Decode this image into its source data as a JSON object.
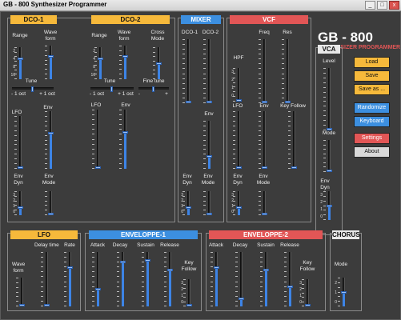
{
  "window": {
    "title": "GB - 800 Synthesizer Programmer",
    "min": "_",
    "max": "□",
    "close": "x"
  },
  "brand": {
    "name": "GB - 800",
    "sub": "SYNTHESIZER PROGRAMMER"
  },
  "colors": {
    "accent": "#3c8fe0",
    "orange": "#f6b93b",
    "red": "#e25656"
  },
  "dco1": {
    "header": "DCO-1",
    "range_label": "Range",
    "wave_label": "Wave\nform",
    "range_marks": [
      "2",
      "4",
      "8",
      "16"
    ],
    "tune_label": "Tune",
    "tune_minus": "- 1 oct",
    "tune_plus": "+ 1 oct",
    "lfo_label": "LFO",
    "env_label": "Env",
    "envdyn_label": "Env\nDyn",
    "envmode_label": "Env\nMode",
    "envdyn_marks": [
      "3",
      "2",
      "1",
      "0"
    ]
  },
  "dco2": {
    "header": "DCO-2",
    "range_label": "Range",
    "wave_label": "Wave\nform",
    "cross_label": "Cross\nMode",
    "range_marks": [
      "2",
      "4",
      "8",
      "16"
    ],
    "tune_label": "Tune",
    "tune_minus": "- 1 oct",
    "tune_plus": "+ 1 oct",
    "fine_label": "Fine tune",
    "fine_minus": "-",
    "fine_plus": "+",
    "lfo_label": "LFO",
    "env_label": "Env"
  },
  "mixer": {
    "header": "MIXER",
    "dco1_label": "DCO-1",
    "dco2_label": "DCO-2",
    "env_label": "Env",
    "envdyn_label": "Env\nDyn",
    "envmode_label": "Env\nMode",
    "envdyn_marks": [
      "3",
      "2",
      "1",
      "0"
    ]
  },
  "vcf": {
    "header": "VCF",
    "freq_label": "Freq",
    "res_label": "Res",
    "hpf_label": "HPF",
    "hpf_marks": [
      "3",
      "2",
      "1",
      "0"
    ],
    "lfo_label": "LFO",
    "env_label": "Env",
    "keyfollow_label": "Key Follow",
    "envdyn_label": "Env\nDyn",
    "envmode_label": "Env\nMode",
    "envdyn_marks": [
      "3",
      "2",
      "1",
      "0"
    ]
  },
  "vca": {
    "header": "VCA",
    "level_label": "Level",
    "mode_label": "Mode",
    "envdyn_label": "Env\nDyn",
    "envdyn_marks": [
      "3",
      "2",
      "1",
      "0"
    ]
  },
  "buttons": {
    "load": "Load",
    "save": "Save",
    "save_as": "Save as ...",
    "randomize": "Randomize",
    "keyboard": "Keyboard",
    "settings": "Settings",
    "about": "About"
  },
  "lfo": {
    "header": "LFO",
    "delay_label": "Delay time",
    "rate_label": "Rate",
    "wave_label": "Wave\nform"
  },
  "env1": {
    "header": "ENVELOPPE-1",
    "attack": "Attack",
    "decay": "Decay",
    "sustain": "Sustain",
    "release": "Release",
    "keyfollow": "Key\nFollow",
    "kf_marks": [
      "3",
      "2",
      "1",
      "0"
    ]
  },
  "env2": {
    "header": "ENVELOPPE-2",
    "attack": "Attack",
    "decay": "Decay",
    "sustain": "Sustain",
    "release": "Release",
    "keyfollow": "Key\nFollow",
    "kf_marks": [
      "3",
      "2",
      "1",
      "0"
    ]
  },
  "chorus": {
    "header": "CHORUS",
    "mode_label": "Mode",
    "mode_marks": [
      "2",
      "1",
      "0"
    ]
  },
  "sliders": {
    "dco1_range": 0.66,
    "dco1_wave": 0.7,
    "dco1_lfo": 0.0,
    "dco1_env": 0.62,
    "dco1_envdyn": 0.33,
    "dco1_envmode": 0.0,
    "dco2_range": 0.66,
    "dco2_wave": 0.7,
    "dco2_cross": 0.5,
    "dco2_lfo": 0.0,
    "dco2_env": 0.62,
    "mix_dco1": 0.0,
    "mix_dco2": 0.0,
    "mix_env": 0.26,
    "mix_envdyn": 0.33,
    "mix_envmode": 0.0,
    "vcf_hpf": 0.0,
    "vcf_freq": 0.0,
    "vcf_res": 0.0,
    "vcf_lfo": 0.0,
    "vcf_env": 0.0,
    "vcf_kf": 0.0,
    "vcf_envdyn": 0.33,
    "vcf_envmode": 0.0,
    "vca_level": 0.0,
    "vca_mode": 0.0,
    "vca_envdyn": 0.5,
    "lfo_delay": 0.0,
    "lfo_rate": 0.72,
    "lfo_wave": 0.0,
    "env1_attack": 0.32,
    "env1_decay": 0.82,
    "env1_sustain": 0.85,
    "env1_release": 0.67,
    "env1_kf": 0.0,
    "env2_attack": 0.72,
    "env2_decay": 0.15,
    "env2_sustain": 0.68,
    "env2_release": 0.37,
    "env2_kf": 0.0,
    "chorus_mode": 0.5,
    "dco1_tune": 0.5,
    "dco2_tune": 0.5,
    "dco2_fine": 0.5
  }
}
